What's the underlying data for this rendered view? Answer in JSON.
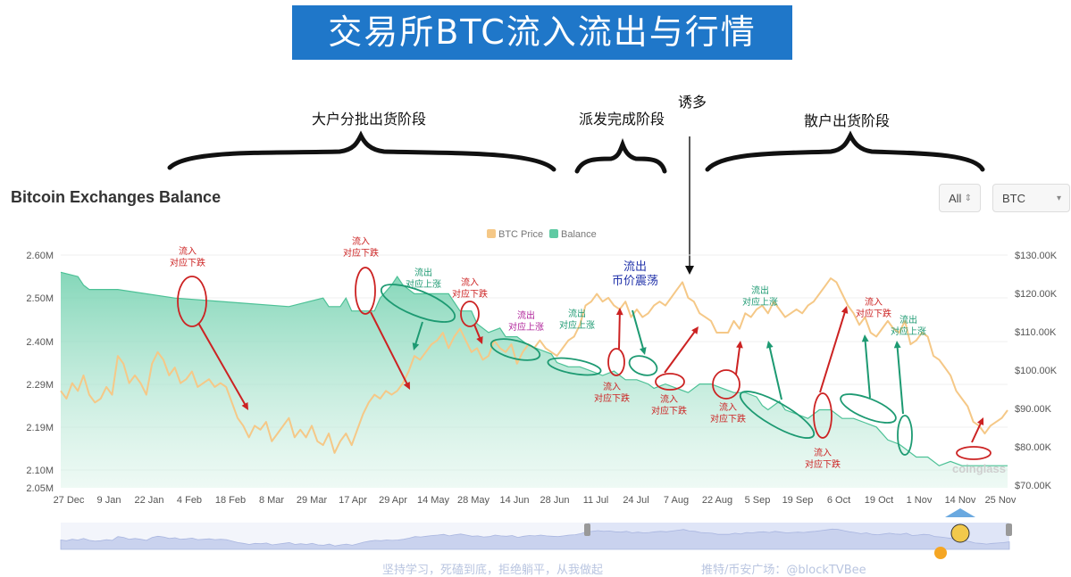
{
  "banner": {
    "title": "交易所BTC流入流出与行情"
  },
  "chart_header": {
    "title": "Bitcoin Exchanges Balance"
  },
  "controls": {
    "range_value": "All",
    "coin_value": "BTC"
  },
  "legend": [
    "BTC Price",
    "Balance"
  ],
  "phases": [
    {
      "label": "大户分批出货阶段"
    },
    {
      "label": "派发完成阶段"
    },
    {
      "label": "诱多"
    },
    {
      "label": "散户出货阶段"
    }
  ],
  "annotations": [
    {
      "text": "流入\n对应下跌",
      "color": "#cc2222"
    },
    {
      "text": "流入\n对应下跌",
      "color": "#cc2222"
    },
    {
      "text": "流出\n对应上涨",
      "color": "#1d9a72"
    },
    {
      "text": "流入\n对应下跌",
      "color": "#cc2222"
    },
    {
      "text": "流出\n对应上涨",
      "color": "#b0249a"
    },
    {
      "text": "流出\n对应上涨",
      "color": "#1d9a72"
    },
    {
      "text": "流出\n币价震荡",
      "color": "#2233aa"
    },
    {
      "text": "流入\n对应下跌",
      "color": "#cc2222"
    },
    {
      "text": "流入\n对应下跌",
      "color": "#cc2222"
    },
    {
      "text": "流入\n对应下跌",
      "color": "#cc2222"
    },
    {
      "text": "流出\n对应上涨",
      "color": "#1d9a72"
    },
    {
      "text": "流入\n对应下跌",
      "color": "#cc2222"
    },
    {
      "text": "流入\n对应下跌",
      "color": "#cc2222"
    },
    {
      "text": "流出\n对应上涨",
      "color": "#1d9a72"
    }
  ],
  "watermark": "coinglass",
  "footer": {
    "slogan": "坚持学习，死磕到底，拒绝躺平，从我做起",
    "credit": "推特/币安广场：@blockTVBee"
  },
  "chart_data": {
    "type": "line",
    "title": "Bitcoin Exchanges Balance",
    "x_ticks": [
      "27 Dec",
      "9 Jan",
      "22 Jan",
      "4 Feb",
      "18 Feb",
      "8 Mar",
      "29 Mar",
      "17 Apr",
      "29 Apr",
      "14 May",
      "28 May",
      "14 Jun",
      "28 Jun",
      "11 Jul",
      "24 Jul",
      "7 Aug",
      "22 Aug",
      "5 Sep",
      "19 Sep",
      "6 Oct",
      "19 Oct",
      "1 Nov",
      "14 Nov",
      "25 Nov"
    ],
    "y_left": {
      "ticks": [
        "2.60M",
        "2.50M",
        "2.40M",
        "2.29M",
        "2.19M",
        "2.10M",
        "2.05M"
      ],
      "range": [
        2.05,
        2.6
      ],
      "unit": "M BTC"
    },
    "y_right": {
      "ticks": [
        "$130.00K",
        "$120.00K",
        "$110.00K",
        "$100.00K",
        "$90.00K",
        "$80.00K",
        "$70.00K"
      ],
      "range": [
        70,
        130
      ],
      "unit": "K USD"
    },
    "grid": true,
    "legend_position": "top-center",
    "series": [
      {
        "name": "BTC Price",
        "axis": "right",
        "color": "#f5c887",
        "points": [
          [
            0,
            95
          ],
          [
            1,
            93
          ],
          [
            2,
            97
          ],
          [
            3,
            95
          ],
          [
            4,
            99
          ],
          [
            5,
            94
          ],
          [
            6,
            92
          ],
          [
            7,
            93
          ],
          [
            8,
            96
          ],
          [
            9,
            94
          ],
          [
            10,
            104
          ],
          [
            11,
            102
          ],
          [
            12,
            97
          ],
          [
            13,
            99
          ],
          [
            14,
            97
          ],
          [
            15,
            94
          ],
          [
            16,
            102
          ],
          [
            17,
            105
          ],
          [
            18,
            103
          ],
          [
            19,
            99
          ],
          [
            20,
            101
          ],
          [
            21,
            97
          ],
          [
            22,
            98
          ],
          [
            23,
            100
          ],
          [
            24,
            96
          ],
          [
            25,
            97
          ],
          [
            26,
            98
          ],
          [
            27,
            96
          ],
          [
            28,
            97
          ],
          [
            29,
            96
          ],
          [
            30,
            92
          ],
          [
            31,
            88
          ],
          [
            32,
            86
          ],
          [
            33,
            83
          ],
          [
            34,
            86
          ],
          [
            35,
            85
          ],
          [
            36,
            87
          ],
          [
            37,
            82
          ],
          [
            38,
            84
          ],
          [
            39,
            86
          ],
          [
            40,
            88
          ],
          [
            41,
            83
          ],
          [
            42,
            85
          ],
          [
            43,
            83
          ],
          [
            44,
            86
          ],
          [
            45,
            82
          ],
          [
            46,
            81
          ],
          [
            47,
            84
          ],
          [
            48,
            79
          ],
          [
            49,
            82
          ],
          [
            50,
            84
          ],
          [
            51,
            81
          ],
          [
            52,
            85
          ],
          [
            53,
            89
          ],
          [
            54,
            92
          ],
          [
            55,
            94
          ],
          [
            56,
            93
          ],
          [
            57,
            95
          ],
          [
            58,
            94
          ],
          [
            59,
            95
          ],
          [
            60,
            97
          ],
          [
            61,
            100
          ],
          [
            62,
            104
          ],
          [
            63,
            103
          ],
          [
            64,
            105
          ],
          [
            65,
            107
          ],
          [
            66,
            108
          ],
          [
            67,
            110
          ],
          [
            68,
            106
          ],
          [
            69,
            109
          ],
          [
            70,
            111
          ],
          [
            71,
            108
          ],
          [
            72,
            105
          ],
          [
            73,
            106
          ],
          [
            74,
            103
          ],
          [
            75,
            104
          ],
          [
            76,
            108
          ],
          [
            77,
            106
          ],
          [
            78,
            105
          ],
          [
            79,
            107
          ],
          [
            80,
            102
          ],
          [
            81,
            105
          ],
          [
            82,
            107
          ],
          [
            83,
            106
          ],
          [
            84,
            108
          ],
          [
            85,
            106
          ],
          [
            86,
            105
          ],
          [
            87,
            104
          ],
          [
            88,
            106
          ],
          [
            89,
            108
          ],
          [
            90,
            109
          ],
          [
            91,
            112
          ],
          [
            92,
            117
          ],
          [
            93,
            118
          ],
          [
            94,
            120
          ],
          [
            95,
            118
          ],
          [
            96,
            119
          ],
          [
            97,
            117
          ],
          [
            98,
            116
          ],
          [
            99,
            118
          ],
          [
            100,
            114
          ],
          [
            101,
            116
          ],
          [
            102,
            114
          ],
          [
            103,
            115
          ],
          [
            104,
            117
          ],
          [
            105,
            118
          ],
          [
            106,
            117
          ],
          [
            107,
            119
          ],
          [
            108,
            121
          ],
          [
            109,
            123
          ],
          [
            110,
            119
          ],
          [
            111,
            118
          ],
          [
            112,
            115
          ],
          [
            113,
            114
          ],
          [
            114,
            113
          ],
          [
            115,
            110
          ],
          [
            116,
            110
          ],
          [
            117,
            110
          ],
          [
            118,
            113
          ],
          [
            119,
            111
          ],
          [
            120,
            115
          ],
          [
            121,
            114
          ],
          [
            122,
            116
          ],
          [
            123,
            117
          ],
          [
            124,
            115
          ],
          [
            125,
            118
          ],
          [
            126,
            116
          ],
          [
            127,
            114
          ],
          [
            128,
            115
          ],
          [
            129,
            116
          ],
          [
            130,
            115
          ],
          [
            131,
            117
          ],
          [
            132,
            118
          ],
          [
            133,
            120
          ],
          [
            134,
            122
          ],
          [
            135,
            124
          ],
          [
            136,
            123
          ],
          [
            137,
            120
          ],
          [
            138,
            117
          ],
          [
            139,
            115
          ],
          [
            140,
            112
          ],
          [
            141,
            114
          ],
          [
            142,
            110
          ],
          [
            143,
            109
          ],
          [
            144,
            111
          ],
          [
            145,
            113
          ],
          [
            146,
            111
          ],
          [
            147,
            110
          ],
          [
            148,
            113
          ],
          [
            149,
            107
          ],
          [
            150,
            108
          ],
          [
            151,
            110
          ],
          [
            152,
            109
          ],
          [
            153,
            104
          ],
          [
            154,
            103
          ],
          [
            155,
            101
          ],
          [
            156,
            99
          ],
          [
            157,
            95
          ],
          [
            158,
            93
          ],
          [
            159,
            91
          ],
          [
            160,
            87
          ],
          [
            161,
            86
          ],
          [
            162,
            84
          ],
          [
            163,
            86
          ],
          [
            164,
            87
          ],
          [
            165,
            88
          ],
          [
            166,
            90
          ]
        ]
      },
      {
        "name": "Balance",
        "axis": "left",
        "color": "#5fcaa3",
        "points": [
          [
            0,
            2.56
          ],
          [
            3,
            2.55
          ],
          [
            4,
            2.53
          ],
          [
            5,
            2.52
          ],
          [
            10,
            2.52
          ],
          [
            20,
            2.5
          ],
          [
            30,
            2.49
          ],
          [
            40,
            2.48
          ],
          [
            46,
            2.5
          ],
          [
            47,
            2.48
          ],
          [
            49,
            2.48
          ],
          [
            50,
            2.5
          ],
          [
            51,
            2.47
          ],
          [
            55,
            2.47
          ],
          [
            56,
            2.5
          ],
          [
            58,
            2.53
          ],
          [
            59,
            2.55
          ],
          [
            60,
            2.53
          ],
          [
            62,
            2.51
          ],
          [
            68,
            2.51
          ],
          [
            70,
            2.47
          ],
          [
            72,
            2.47
          ],
          [
            73,
            2.44
          ],
          [
            75,
            2.42
          ],
          [
            77,
            2.43
          ],
          [
            78,
            2.41
          ],
          [
            80,
            2.41
          ],
          [
            82,
            2.39
          ],
          [
            84,
            2.38
          ],
          [
            86,
            2.37
          ],
          [
            87,
            2.35
          ],
          [
            89,
            2.34
          ],
          [
            91,
            2.34
          ],
          [
            93,
            2.33
          ],
          [
            95,
            2.32
          ],
          [
            97,
            2.33
          ],
          [
            99,
            2.31
          ],
          [
            101,
            2.31
          ],
          [
            103,
            2.3
          ],
          [
            104,
            2.29
          ],
          [
            106,
            2.3
          ],
          [
            108,
            2.29
          ],
          [
            110,
            2.28
          ],
          [
            112,
            2.3
          ],
          [
            114,
            2.3
          ],
          [
            116,
            2.29
          ],
          [
            118,
            2.28
          ],
          [
            120,
            2.28
          ],
          [
            122,
            2.27
          ],
          [
            123,
            2.25
          ],
          [
            124,
            2.24
          ],
          [
            126,
            2.26
          ],
          [
            127,
            2.24
          ],
          [
            129,
            2.23
          ],
          [
            131,
            2.22
          ],
          [
            133,
            2.24
          ],
          [
            135,
            2.24
          ],
          [
            137,
            2.22
          ],
          [
            139,
            2.22
          ],
          [
            141,
            2.21
          ],
          [
            143,
            2.2
          ],
          [
            145,
            2.17
          ],
          [
            147,
            2.16
          ],
          [
            148,
            2.15
          ],
          [
            150,
            2.13
          ],
          [
            152,
            2.13
          ],
          [
            154,
            2.11
          ],
          [
            156,
            2.12
          ],
          [
            158,
            2.11
          ],
          [
            160,
            2.11
          ],
          [
            162,
            2.11
          ],
          [
            164,
            2.11
          ],
          [
            166,
            2.11
          ]
        ]
      }
    ]
  }
}
